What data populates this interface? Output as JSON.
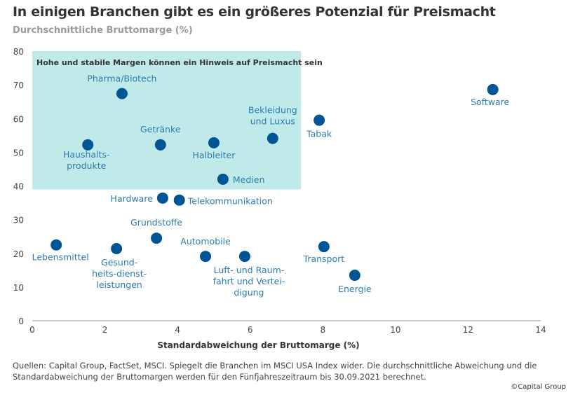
{
  "title": "In einigen Branchen gibt es ein größeres Potenzial für Preismacht",
  "subtitle": "Durchschnittliche Bruttomarge (%)",
  "source": "Quellen: Capital Group, FactSet, MSCI. Spiegelt die Branchen im MSCI USA Index wider. Die durchschnittliche Abweichung und die Standardabweichung der Bruttomargen werden für den Fünfjahreszeitraum bis 30.09.2021 berechnet.",
  "copyright": "©Capital Group",
  "chart_data": {
    "type": "scatter",
    "title": "In einigen Branchen gibt es ein größeres Potenzial für Preismacht",
    "xlabel": "Standardabweichung der Bruttomarge (%)",
    "ylabel": "Durchschnittliche Bruttomarge (%)",
    "xlim": [
      0,
      14
    ],
    "ylim": [
      0,
      80
    ],
    "xticks": [
      0,
      2,
      4,
      6,
      8,
      10,
      12,
      14
    ],
    "yticks": [
      0,
      10,
      20,
      30,
      40,
      50,
      60,
      70,
      80
    ],
    "grid": false,
    "highlight_region": {
      "x": [
        0,
        7.4
      ],
      "y": [
        39,
        80
      ],
      "label": "Hohe und stabile Margen können ein Hinweis auf Preismacht sein",
      "color": "#c0e9e9"
    },
    "colors": {
      "point": "#005596",
      "label": "#2b7bb0"
    },
    "points": [
      {
        "label": "Pharma/Biotech",
        "x": 2.47,
        "y": 67.4
      },
      {
        "label": "Software",
        "x": 12.68,
        "y": 68.6
      },
      {
        "label": "Tabak",
        "x": 7.9,
        "y": 59.5
      },
      {
        "label": "Bekleidung\nund Luxus",
        "x": 6.62,
        "y": 54.1
      },
      {
        "label": "Haushalts-\nprodukte",
        "x": 1.53,
        "y": 52.2
      },
      {
        "label": "Getränke",
        "x": 3.53,
        "y": 52.2
      },
      {
        "label": "Halbleiter",
        "x": 5.0,
        "y": 52.8
      },
      {
        "label": "Medien",
        "x": 5.25,
        "y": 42.0
      },
      {
        "label": "Hardware",
        "x": 3.59,
        "y": 36.4
      },
      {
        "label": "Telekommunikation",
        "x": 4.05,
        "y": 35.8
      },
      {
        "label": "Grundstoffe",
        "x": 3.42,
        "y": 24.5
      },
      {
        "label": "Lebensmittel",
        "x": 0.66,
        "y": 22.5
      },
      {
        "label": "Gesund-\nheits-dienst-\nleistungen",
        "x": 2.32,
        "y": 21.4
      },
      {
        "label": "Automobile",
        "x": 4.77,
        "y": 19.1
      },
      {
        "label": "Luft- und Raum-\nfahrt und Vertei-\ndigung",
        "x": 5.85,
        "y": 19.1
      },
      {
        "label": "Transport",
        "x": 8.03,
        "y": 22.0
      },
      {
        "label": "Energie",
        "x": 8.88,
        "y": 13.5
      }
    ]
  }
}
